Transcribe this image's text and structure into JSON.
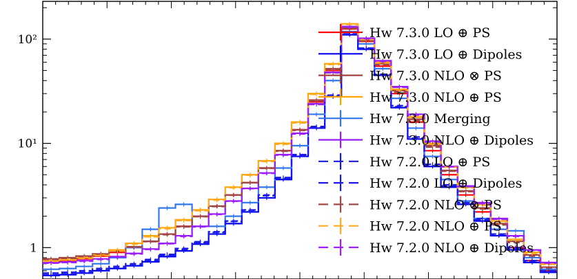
{
  "chart_data": {
    "type": "line",
    "title": "",
    "xlabel": "",
    "ylabel": "",
    "y_scale": "log",
    "ylim": [
      0.5,
      230
    ],
    "x_bins": 31,
    "y_ticks": [
      {
        "value": 1,
        "label": "1"
      },
      {
        "value": 10,
        "label": "10¹"
      },
      {
        "value": 100,
        "label": "10²"
      }
    ],
    "legend_position": "right",
    "series": [
      {
        "name": "Hw 7.3.0 LO ⊕ PS",
        "color": "#ff0000",
        "dash": false,
        "values": [
          0.72,
          0.74,
          0.78,
          0.83,
          0.9,
          1.0,
          1.15,
          1.35,
          1.6,
          2.0,
          2.5,
          3.2,
          4.2,
          5.8,
          8.5,
          13.5,
          25,
          50,
          125,
          95,
          55,
          30,
          16,
          8.5,
          5,
          3.2,
          2.2,
          1.5,
          1.0,
          0.75,
          0.6
        ]
      },
      {
        "name": "Hw 7.3.0 LO ⊕ Dipoles",
        "color": "#0000ee",
        "dash": false,
        "values": [
          0.54,
          0.55,
          0.57,
          0.6,
          0.63,
          0.67,
          0.73,
          0.82,
          0.93,
          1.08,
          1.35,
          1.7,
          2.2,
          3.0,
          4.5,
          7.5,
          14,
          28,
          110,
          80,
          45,
          22,
          11,
          6,
          3.8,
          2.6,
          1.8,
          1.3,
          0.95,
          0.72,
          0.58
        ]
      },
      {
        "name": "Hw 7.3.0 NLO ⊗ PS",
        "color": "#a04040",
        "dash": false,
        "values": [
          0.78,
          0.8,
          0.83,
          0.87,
          0.93,
          1.02,
          1.15,
          1.35,
          1.6,
          2.0,
          2.5,
          3.2,
          4.2,
          5.8,
          8.5,
          13.5,
          26,
          52,
          128,
          98,
          58,
          32,
          17,
          9.5,
          5.5,
          3.5,
          2.4,
          1.7,
          1.15,
          0.85,
          0.65
        ]
      },
      {
        "name": "Hw 7.3.0 NLO ⊕ PS",
        "color": "#ffa500",
        "dash": false,
        "values": [
          0.75,
          0.77,
          0.8,
          0.85,
          0.95,
          1.1,
          1.3,
          1.55,
          1.85,
          2.3,
          2.9,
          3.8,
          5.0,
          6.8,
          10.0,
          16,
          30,
          58,
          140,
          100,
          60,
          33,
          18,
          10,
          6,
          3.8,
          2.6,
          1.8,
          1.2,
          0.9,
          0.7
        ]
      },
      {
        "name": "Hw 7.3.0 Merging",
        "color": "#3377ee",
        "dash": false,
        "values": [
          0.62,
          0.63,
          0.66,
          0.7,
          0.8,
          1.0,
          1.5,
          2.4,
          2.6,
          1.6,
          1.6,
          2.0,
          2.7,
          3.8,
          5.8,
          9.5,
          19,
          40,
          118,
          90,
          52,
          27,
          14,
          7.5,
          4.5,
          2.8,
          1.9,
          1.5,
          1.45,
          0.8,
          0.62
        ]
      },
      {
        "name": "Hw 7.3.0 NLO ⊕ Dipoles",
        "color": "#9a1aff",
        "dash": false,
        "values": [
          0.72,
          0.73,
          0.75,
          0.78,
          0.82,
          0.88,
          0.97,
          1.1,
          1.3,
          1.6,
          2.1,
          2.8,
          3.7,
          5.2,
          7.8,
          12.5,
          24,
          48,
          132,
          102,
          62,
          35,
          19,
          10.5,
          6,
          3.9,
          2.7,
          1.9,
          1.3,
          0.95,
          0.72
        ]
      },
      {
        "name": "Hw 7.2.0 LO ⊕ PS",
        "color": "#1a1add",
        "dash": true,
        "values": [
          0.57,
          0.58,
          0.6,
          0.63,
          0.66,
          0.7,
          0.77,
          0.86,
          0.98,
          1.14,
          1.42,
          1.8,
          2.3,
          3.2,
          4.7,
          7.8,
          14.5,
          29,
          112,
          82,
          46,
          23,
          11.5,
          6.3,
          4.0,
          2.7,
          1.9,
          1.35,
          1.0,
          0.75,
          0.6
        ]
      },
      {
        "name": "Hw 7.2.0 LO ⊕ Dipoles",
        "color": "#1a1aee",
        "dash": true,
        "values": [
          0.55,
          0.56,
          0.58,
          0.61,
          0.64,
          0.68,
          0.75,
          0.84,
          0.96,
          1.12,
          1.4,
          1.78,
          2.28,
          3.15,
          4.6,
          7.6,
          14.2,
          28.5,
          111,
          81,
          45,
          22.5,
          11.2,
          6.1,
          3.9,
          2.65,
          1.85,
          1.32,
          0.98,
          0.74,
          0.59
        ]
      },
      {
        "name": "Hw 7.2.0 NLO ⊗ PS",
        "color": "#a04848",
        "dash": true,
        "values": [
          0.77,
          0.79,
          0.82,
          0.86,
          0.92,
          1.01,
          1.14,
          1.33,
          1.58,
          1.98,
          2.48,
          3.18,
          4.18,
          5.75,
          8.4,
          13.3,
          25.5,
          51,
          126,
          96,
          57,
          31,
          16.5,
          9.2,
          5.4,
          3.45,
          2.35,
          1.65,
          1.12,
          0.83,
          0.64
        ]
      },
      {
        "name": "Hw 7.2.0 NLO ⊕ PS",
        "color": "#ffaa22",
        "dash": true,
        "values": [
          0.74,
          0.76,
          0.79,
          0.84,
          0.93,
          1.08,
          1.27,
          1.52,
          1.82,
          2.26,
          2.85,
          3.75,
          4.95,
          6.7,
          9.8,
          15.7,
          29.5,
          57,
          138,
          99,
          59,
          32.5,
          17.7,
          9.8,
          5.9,
          3.75,
          2.55,
          1.77,
          1.18,
          0.88,
          0.69
        ]
      },
      {
        "name": "Hw 7.2.0 NLO ⊕ Dipoles",
        "color": "#9a20ff",
        "dash": true,
        "values": [
          0.71,
          0.72,
          0.74,
          0.77,
          0.81,
          0.87,
          0.96,
          1.09,
          1.28,
          1.58,
          2.08,
          2.78,
          3.68,
          5.15,
          7.7,
          12.3,
          23.6,
          47.5,
          130,
          101,
          61,
          34.5,
          18.7,
          10.3,
          5.95,
          3.85,
          2.65,
          1.87,
          1.28,
          0.94,
          0.71
        ]
      }
    ]
  }
}
